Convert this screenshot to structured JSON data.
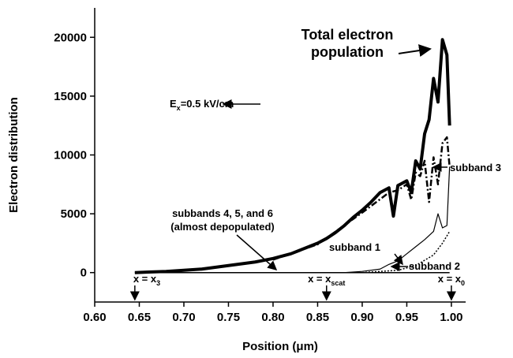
{
  "chart_data": {
    "type": "line",
    "xlabel": "Position (μm)",
    "ylabel": "Electron distribution",
    "xlim": [
      0.6,
      1.016
    ],
    "ylim": [
      -2500,
      22500
    ],
    "xticks": [
      {
        "value": 0.6,
        "label": "0.60"
      },
      0.65,
      {
        "value": 0.7,
        "label": "0.70"
      },
      0.75,
      {
        "value": 0.8,
        "label": "0.80"
      },
      0.85,
      {
        "value": 0.9,
        "label": "0.90"
      },
      0.95,
      {
        "value": 1,
        "label": "1.00"
      }
    ],
    "yticks": [
      0,
      5000,
      10000,
      15000,
      20000
    ],
    "series": [
      {
        "name": "Total electron population",
        "color": "#000000",
        "width": 4,
        "dash": "none",
        "x": [
          0.645,
          0.66,
          0.68,
          0.7,
          0.72,
          0.74,
          0.76,
          0.78,
          0.8,
          0.82,
          0.83,
          0.84,
          0.85,
          0.86,
          0.87,
          0.88,
          0.89,
          0.9,
          0.91,
          0.92,
          0.93,
          0.935,
          0.94,
          0.95,
          0.955,
          0.96,
          0.965,
          0.97,
          0.975,
          0.98,
          0.985,
          0.99,
          0.995,
          0.998
        ],
        "values": [
          0,
          50,
          100,
          200,
          300,
          500,
          700,
          900,
          1200,
          1600,
          1900,
          2200,
          2500,
          2900,
          3400,
          4000,
          4700,
          5300,
          6000,
          6800,
          7200,
          4800,
          7400,
          7800,
          6800,
          9500,
          8800,
          11800,
          13000,
          16500,
          14500,
          19800,
          18500,
          12500
        ]
      },
      {
        "name": "subband 3",
        "color": "#000000",
        "width": 2.5,
        "dash": "8 3 2 3",
        "x": [
          0.8,
          0.85,
          0.9,
          0.93,
          0.94,
          0.95,
          0.955,
          0.96,
          0.965,
          0.97,
          0.975,
          0.98,
          0.985,
          0.99,
          0.995,
          0.998
        ],
        "values": [
          1100,
          2400,
          5100,
          6800,
          7000,
          7500,
          6200,
          8500,
          8200,
          9500,
          6000,
          9800,
          7500,
          11000,
          11500,
          9000
        ]
      },
      {
        "name": "subband 1",
        "color": "#000000",
        "width": 1.2,
        "dash": "none",
        "x": [
          0.88,
          0.9,
          0.92,
          0.93,
          0.94,
          0.95,
          0.96,
          0.97,
          0.98,
          0.985,
          0.99,
          0.995,
          0.998
        ],
        "values": [
          0,
          100,
          300,
          700,
          1000,
          1600,
          2200,
          2800,
          3500,
          5000,
          3800,
          4000,
          9000
        ]
      },
      {
        "name": "subband 2",
        "color": "#000000",
        "width": 1.5,
        "dash": "2 2",
        "x": [
          0.9,
          0.94,
          0.96,
          0.98,
          0.99,
          0.998
        ],
        "values": [
          0,
          200,
          600,
          1500,
          2500,
          3500
        ]
      },
      {
        "name": "subbands 4, 5, and 6",
        "color": "#000000",
        "width": 1.5,
        "dash": "none",
        "x": [
          0.645,
          0.998
        ],
        "values": [
          0,
          0
        ]
      }
    ],
    "annotations": {
      "field": "E",
      "field_sub": "x",
      "field_rest": "=0.5 kV/cm",
      "depopulated": "(almost depopulated)"
    },
    "markers": [
      {
        "x": 0.645,
        "label": "x = x",
        "sub": "3"
      },
      {
        "x": 0.86,
        "label": "x = x",
        "sub": "scat"
      },
      {
        "x": 1,
        "label": "x = x",
        "sub": "0"
      }
    ]
  }
}
